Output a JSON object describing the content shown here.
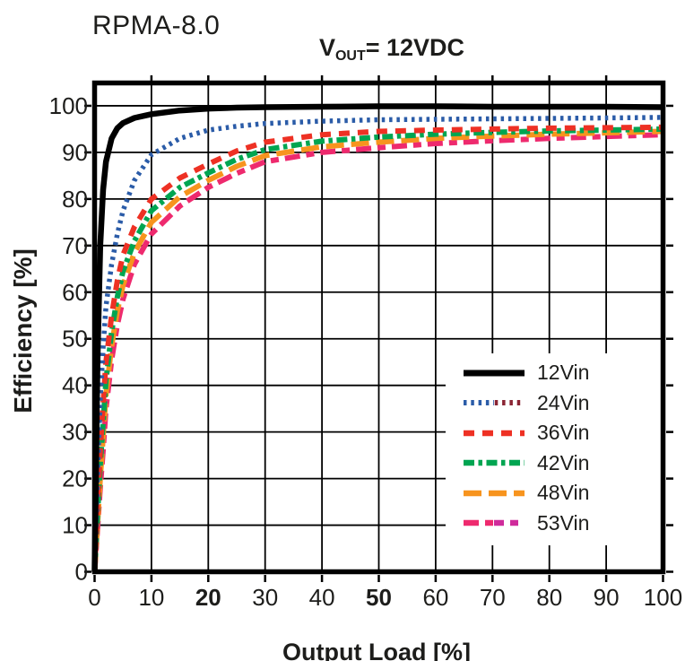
{
  "header": {
    "title": "RPMA-8.0",
    "subtitle": {
      "v": "V",
      "sub": "OUT",
      "eq": "= 12VDC"
    }
  },
  "chart_data": {
    "type": "line",
    "title": "RPMA-8.0",
    "subtitle": "VOUT= 12VDC",
    "xlabel": "Output Load [%]",
    "ylabel": "Efficiency [%]",
    "xlim": [
      0,
      100
    ],
    "ylim": [
      0,
      104.9
    ],
    "grid": true,
    "legend_position": "lower right",
    "x_ticks": [
      0,
      10,
      20,
      30,
      40,
      50,
      60,
      70,
      80,
      90,
      100
    ],
    "x_bold_ticks": [
      20,
      50
    ],
    "y_ticks": [
      0,
      10,
      20,
      30,
      40,
      50,
      60,
      70,
      80,
      90,
      100
    ],
    "x": [
      0,
      0.5,
      1,
      1.5,
      2,
      3,
      4,
      5,
      7,
      10,
      15,
      20,
      25,
      30,
      40,
      50,
      60,
      70,
      80,
      90,
      100
    ],
    "series": [
      {
        "name": "12Vin",
        "color": "#000000",
        "width": 6.5,
        "dash": [],
        "legend_colors": [
          "#000000"
        ],
        "values": [
          0,
          45,
          70,
          82,
          88,
          93,
          95.2,
          96.3,
          97.4,
          98.2,
          99,
          99.4,
          99.6,
          99.7,
          99.8,
          99.9,
          99.9,
          99.8,
          99.8,
          99.8,
          99.7
        ]
      },
      {
        "name": "24Vin",
        "color": "#2b5ca8",
        "width": 5.5,
        "dash": [
          3.5,
          4.8
        ],
        "legend_colors": [
          "#2b5ca8",
          "#8a2433"
        ],
        "values": [
          0,
          20,
          37,
          48,
          57,
          66,
          72.5,
          77.5,
          84,
          89.5,
          93,
          94.8,
          95.6,
          96.2,
          96.7,
          97,
          97.1,
          97.2,
          97.3,
          97.4,
          97.5
        ]
      },
      {
        "name": "36Vin",
        "color": "#ee3124",
        "width": 6,
        "dash": [
          12,
          9
        ],
        "legend_colors": [
          "#ee3124"
        ],
        "values": [
          0,
          14,
          26,
          36,
          45,
          55,
          62.5,
          68,
          74,
          80,
          84.5,
          87.5,
          90.3,
          92.2,
          93.8,
          94.5,
          94.8,
          95,
          95.2,
          95.3,
          95.4
        ]
      },
      {
        "name": "42Vin",
        "color": "#00a551",
        "width": 6,
        "dash": [
          12,
          4.5,
          4.5,
          4.5
        ],
        "legend_colors": [
          "#00a551"
        ],
        "values": [
          0,
          12,
          23,
          32,
          41,
          51.5,
          59,
          64.5,
          71,
          77.5,
          82.5,
          85.6,
          88.5,
          90.6,
          92.4,
          93.3,
          93.9,
          94.3,
          94.6,
          94.8,
          95
        ]
      },
      {
        "name": "48Vin",
        "color": "#f7941e",
        "width": 6,
        "dash": [
          20,
          8
        ],
        "legend_colors": [
          "#f7941e"
        ],
        "values": [
          0,
          10,
          20,
          29,
          38,
          48.5,
          56,
          61.5,
          68.5,
          75,
          80.5,
          84,
          87,
          89.3,
          91.2,
          92.2,
          93,
          93.5,
          93.9,
          94.2,
          94.5
        ]
      },
      {
        "name": "53Vin",
        "color": "#ee2a6e",
        "width": 6,
        "dash": [
          17,
          7,
          9,
          7
        ],
        "legend_colors": [
          "#ee2a6e",
          "#cf2b9b"
        ],
        "values": [
          0,
          9,
          18,
          26,
          35,
          45.5,
          53,
          58.5,
          66,
          72.5,
          78.5,
          82.5,
          85.5,
          88,
          90,
          91,
          91.9,
          92.5,
          93,
          93.4,
          93.8
        ]
      }
    ],
    "colors": {
      "text": "#1d1d1b",
      "grid": "#000000",
      "frame": "#000000",
      "background": "#ffffff"
    }
  }
}
